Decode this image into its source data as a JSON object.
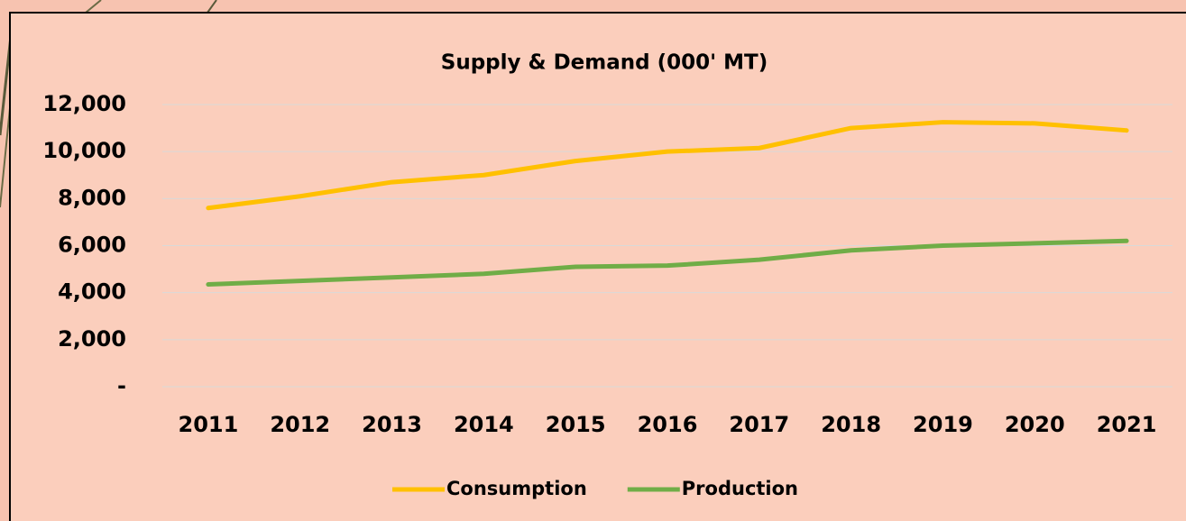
{
  "chart_data": {
    "type": "line",
    "title": "Supply & Demand (000' MT)",
    "categories": [
      "2011",
      "2012",
      "2013",
      "2014",
      "2015",
      "2016",
      "2017",
      "2018",
      "2019",
      "2020",
      "2021"
    ],
    "series": [
      {
        "name": "Consumption",
        "color": "#ffc000",
        "values": [
          7600,
          8100,
          8700,
          9000,
          9600,
          10000,
          10150,
          11000,
          11250,
          11200,
          10900
        ]
      },
      {
        "name": "Production",
        "color": "#70ad47",
        "values": [
          4350,
          4500,
          4650,
          4800,
          5100,
          5150,
          5400,
          5800,
          6000,
          6100,
          6200
        ]
      }
    ],
    "ylim": [
      0,
      12000
    ],
    "yticks": [
      {
        "value": 0,
        "label": "-"
      },
      {
        "value": 2000,
        "label": "2,000"
      },
      {
        "value": 4000,
        "label": "4,000"
      },
      {
        "value": 6000,
        "label": "6,000"
      },
      {
        "value": 8000,
        "label": "8,000"
      },
      {
        "value": 10000,
        "label": "10,000"
      },
      {
        "value": 12000,
        "label": "12,000"
      }
    ],
    "grid": true,
    "legend": "bottom"
  }
}
